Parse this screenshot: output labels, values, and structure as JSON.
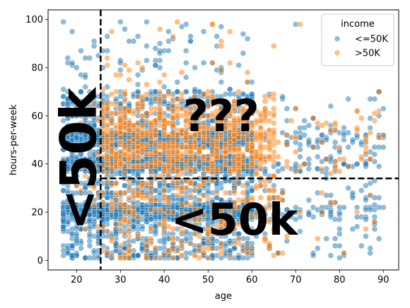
{
  "chart_data": {
    "type": "scatter",
    "xlabel": "age",
    "ylabel": "hours-per-week",
    "xlim": [
      13.5,
      93.5
    ],
    "ylim": [
      -4,
      104
    ],
    "xticks": [
      20,
      30,
      40,
      50,
      60,
      70,
      80,
      90
    ],
    "yticks": [
      0,
      20,
      40,
      60,
      80,
      100
    ],
    "grid": false,
    "legend": {
      "title": "income",
      "placement": "top-right"
    },
    "series": [
      {
        "name": "<=50K",
        "color": "#1f77b4",
        "age_range": [
          17,
          90
        ],
        "hours_range": [
          1,
          99
        ],
        "dense_age_range": [
          17,
          60
        ],
        "common_hours": [
          20,
          40,
          50
        ]
      },
      {
        "name": ">50K",
        "color": "#ff7f0e",
        "age_range": [
          19,
          90
        ],
        "hours_range": [
          1,
          99
        ],
        "dense_age_range": [
          26,
          65
        ],
        "common_hours": [
          40,
          45,
          50,
          55,
          60
        ]
      }
    ],
    "reference_lines": [
      {
        "orientation": "vertical",
        "x": 25.5,
        "style": "dashed",
        "color": "#000000"
      },
      {
        "orientation": "horizontal",
        "y": 34,
        "x_from": 25.5,
        "style": "dashed",
        "color": "#000000"
      }
    ],
    "annotations": [
      {
        "text": "<50k",
        "x": 20.5,
        "y": 42,
        "rotation": -90
      },
      {
        "text": "???",
        "x": 53,
        "y": 60,
        "rotation": 0
      },
      {
        "text": "<50k",
        "x": 56,
        "y": 17,
        "rotation": 0
      }
    ]
  }
}
